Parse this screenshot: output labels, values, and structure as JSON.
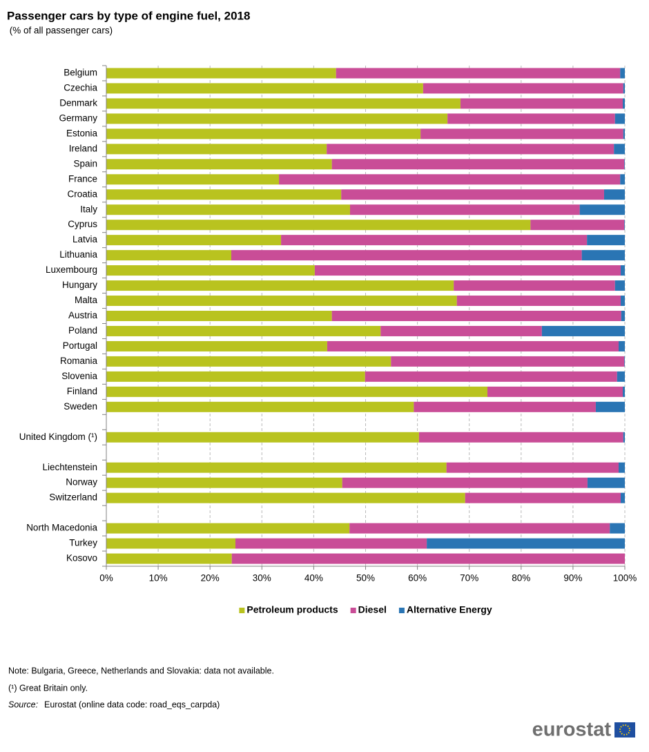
{
  "chart_data": {
    "type": "stacked-barh",
    "title": "Passenger cars by type of engine fuel, 2018",
    "subtitle": " (% of all passenger cars)",
    "categories": [
      "Belgium",
      "Czechia",
      "Denmark",
      "Germany",
      "Estonia",
      "Ireland",
      "Spain",
      "France",
      "Croatia",
      "Italy",
      "Cyprus",
      "Latvia",
      "Lithuania",
      "Luxembourg",
      "Hungary",
      "Malta",
      "Austria",
      "Poland",
      "Portugal",
      "Romania",
      "Slovenia",
      "Finland",
      "Sweden",
      null,
      "United Kingdom (¹)",
      null,
      "Liechtenstein",
      "Norway",
      "Switzerland",
      null,
      "North Macedonia",
      "Turkey",
      "Kosovo"
    ],
    "series": [
      {
        "name": "Petroleum products",
        "color": "#b9c31f",
        "values": [
          44.3,
          61.1,
          68.3,
          65.8,
          60.6,
          42.5,
          43.5,
          33.3,
          45.3,
          47.0,
          81.8,
          33.7,
          24.1,
          40.2,
          67.0,
          67.6,
          43.5,
          52.9,
          42.6,
          54.9,
          49.9,
          73.5,
          59.3,
          null,
          60.3,
          null,
          65.6,
          45.5,
          69.2,
          null,
          46.9,
          24.9,
          24.2
        ]
      },
      {
        "name": "Diesel",
        "color": "#c94d97",
        "values": [
          54.8,
          38.6,
          31.3,
          32.3,
          39.1,
          55.4,
          56.4,
          65.8,
          50.7,
          44.3,
          18.1,
          59.0,
          67.6,
          59.0,
          31.1,
          31.6,
          55.8,
          31.1,
          56.2,
          45.0,
          48.6,
          26.1,
          35.1,
          null,
          39.4,
          null,
          33.2,
          47.3,
          30.0,
          null,
          50.2,
          36.9,
          75.8
        ]
      },
      {
        "name": "Alternative Energy",
        "color": "#2a75b4",
        "values": [
          0.9,
          0.3,
          0.4,
          1.9,
          0.3,
          2.1,
          0.1,
          0.9,
          4.0,
          8.7,
          0.1,
          7.3,
          8.3,
          0.8,
          1.9,
          0.8,
          0.7,
          16.0,
          1.2,
          0.1,
          1.5,
          0.4,
          5.6,
          null,
          0.3,
          null,
          1.2,
          7.2,
          0.8,
          null,
          2.9,
          38.2,
          0
        ]
      }
    ],
    "xlim": [
      0,
      100
    ],
    "xticks": [
      {
        "value": 0,
        "label": "0%"
      },
      {
        "value": 10,
        "label": "10%"
      },
      {
        "value": 20,
        "label": "20%"
      },
      {
        "value": 30,
        "label": "30%"
      },
      {
        "value": 40,
        "label": "40%"
      },
      {
        "value": 50,
        "label": "50%"
      },
      {
        "value": 60,
        "label": "60%"
      },
      {
        "value": 70,
        "label": "70%"
      },
      {
        "value": 80,
        "label": "80%"
      },
      {
        "value": 90,
        "label": "90%"
      },
      {
        "value": 100,
        "label": "100%"
      }
    ],
    "grid": true,
    "legend": "bottom",
    "notes": [
      "Note: Bulgaria, Greece, Netherlands and Slovakia: data not available.",
      "(¹) Great Britain only."
    ],
    "source_label": "Source:",
    "source": "Eurostat (online data code: road_eqs_carpda)",
    "logo": "eurostat"
  }
}
